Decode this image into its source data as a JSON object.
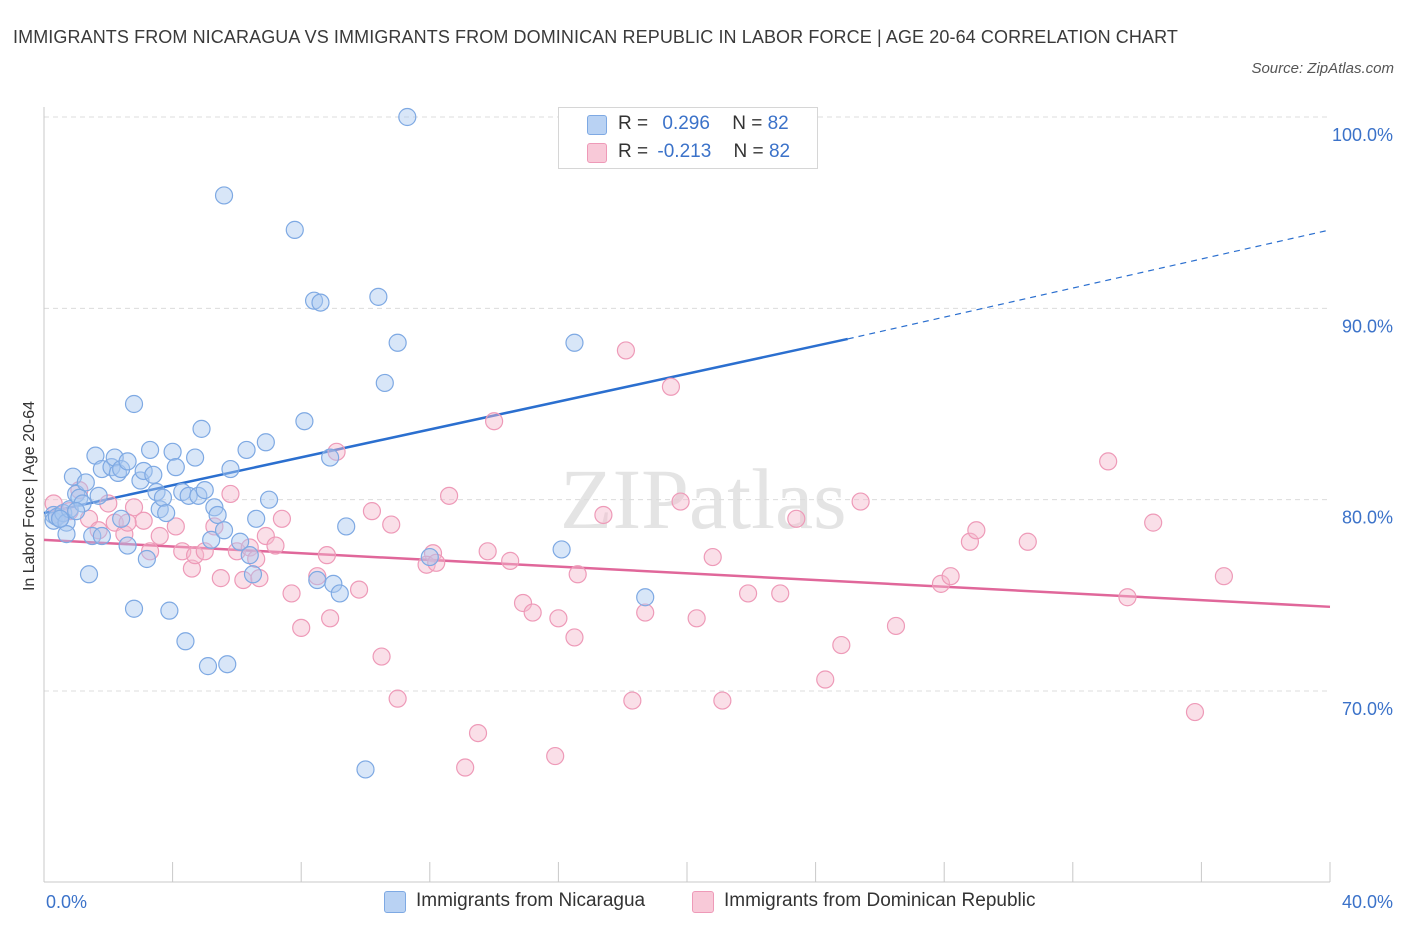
{
  "title": "IMMIGRANTS FROM NICARAGUA VS IMMIGRANTS FROM DOMINICAN REPUBLIC IN LABOR FORCE | AGE 20-64 CORRELATION CHART",
  "source": "Source: ZipAtlas.com",
  "watermark": "ZIPatlas",
  "legend": {
    "rows": [
      {
        "r_label": "R =",
        "r_value": "0.296",
        "n_label": "N =",
        "n_value": "82"
      },
      {
        "r_label": "R =",
        "r_value": "-0.213",
        "n_label": "N =",
        "n_value": "82"
      }
    ]
  },
  "bottom_legend": [
    "Immigrants from Nicaragua",
    "Immigrants from Dominican Republic"
  ],
  "chart_data": {
    "type": "scatter",
    "title": "IMMIGRANTS FROM NICARAGUA VS IMMIGRANTS FROM DOMINICAN REPUBLIC IN LABOR FORCE | AGE 20-64 CORRELATION CHART",
    "xlabel": "",
    "ylabel": "In Labor Force | Age 20-64",
    "xlim": [
      0,
      40
    ],
    "ylim": [
      60,
      100
    ],
    "x_tick_labels": [
      "0.0%",
      "40.0%"
    ],
    "y_ticks": [
      70,
      80,
      90,
      100
    ],
    "y_tick_labels": [
      "70.0%",
      "80.0%",
      "90.0%",
      "100.0%"
    ],
    "grid": true,
    "legend_position": "top-center",
    "colors": {
      "nicaragua": "#a8c8f0",
      "nicaragua_line": "#2b6fcf",
      "dominican": "#f5b8cb",
      "dominican_line": "#e0679a",
      "tick_text": "#3b72c9"
    },
    "series": [
      {
        "name": "Immigrants from Nicaragua",
        "points": [
          [
            0.3,
            79.2
          ],
          [
            0.3,
            78.9
          ],
          [
            0.4,
            79.1
          ],
          [
            0.5,
            79.0
          ],
          [
            0.6,
            79.3
          ],
          [
            0.7,
            78.8
          ],
          [
            0.7,
            78.2
          ],
          [
            0.8,
            79.5
          ],
          [
            0.9,
            81.2
          ],
          [
            1.0,
            80.3
          ],
          [
            1.1,
            80.1
          ],
          [
            1.2,
            79.8
          ],
          [
            1.3,
            80.9
          ],
          [
            1.4,
            76.1
          ],
          [
            1.5,
            78.1
          ],
          [
            1.6,
            82.3
          ],
          [
            1.7,
            80.2
          ],
          [
            1.8,
            81.6
          ],
          [
            1.8,
            78.1
          ],
          [
            2.1,
            81.7
          ],
          [
            2.2,
            82.2
          ],
          [
            2.3,
            81.4
          ],
          [
            2.4,
            81.6
          ],
          [
            2.4,
            79.0
          ],
          [
            2.6,
            77.6
          ],
          [
            2.6,
            82.0
          ],
          [
            2.8,
            85.0
          ],
          [
            2.8,
            74.3
          ],
          [
            3.0,
            81.0
          ],
          [
            3.1,
            81.5
          ],
          [
            3.2,
            76.9
          ],
          [
            3.3,
            82.6
          ],
          [
            3.4,
            81.3
          ],
          [
            3.5,
            80.4
          ],
          [
            3.6,
            79.5
          ],
          [
            3.7,
            80.1
          ],
          [
            3.8,
            79.3
          ],
          [
            3.9,
            74.2
          ],
          [
            4.0,
            82.5
          ],
          [
            4.1,
            81.7
          ],
          [
            4.3,
            80.4
          ],
          [
            4.4,
            72.6
          ],
          [
            4.5,
            80.2
          ],
          [
            4.7,
            82.2
          ],
          [
            4.8,
            80.2
          ],
          [
            4.9,
            83.7
          ],
          [
            5.0,
            80.5
          ],
          [
            5.1,
            71.3
          ],
          [
            5.2,
            77.9
          ],
          [
            5.3,
            79.6
          ],
          [
            5.4,
            79.2
          ],
          [
            5.6,
            78.4
          ],
          [
            5.7,
            71.4
          ],
          [
            5.8,
            81.6
          ],
          [
            6.1,
            77.8
          ],
          [
            6.3,
            82.6
          ],
          [
            6.4,
            77.1
          ],
          [
            6.5,
            76.1
          ],
          [
            6.6,
            79.0
          ],
          [
            6.9,
            83.0
          ],
          [
            7.0,
            80.0
          ],
          [
            7.8,
            94.1
          ],
          [
            8.1,
            84.1
          ],
          [
            8.4,
            90.4
          ],
          [
            8.5,
            75.8
          ],
          [
            8.6,
            90.3
          ],
          [
            8.9,
            82.2
          ],
          [
            9.0,
            75.6
          ],
          [
            9.2,
            75.1
          ],
          [
            9.4,
            78.6
          ],
          [
            10.0,
            65.9
          ],
          [
            10.4,
            90.6
          ],
          [
            10.6,
            86.1
          ],
          [
            11.0,
            88.2
          ],
          [
            11.3,
            100.0
          ],
          [
            12.0,
            77.0
          ],
          [
            16.1,
            77.4
          ],
          [
            16.5,
            88.2
          ],
          [
            18.7,
            74.9
          ],
          [
            5.6,
            95.9
          ],
          [
            1.0,
            79.4
          ],
          [
            0.5,
            79.0
          ]
        ]
      },
      {
        "name": "Immigrants from Dominican Republic",
        "points": [
          [
            0.3,
            79.8
          ],
          [
            0.5,
            79.2
          ],
          [
            0.8,
            79.4
          ],
          [
            1.1,
            80.5
          ],
          [
            1.4,
            79.0
          ],
          [
            1.7,
            78.4
          ],
          [
            2.0,
            79.8
          ],
          [
            2.2,
            78.8
          ],
          [
            2.5,
            78.2
          ],
          [
            2.8,
            79.6
          ],
          [
            3.1,
            78.9
          ],
          [
            3.3,
            77.3
          ],
          [
            4.1,
            78.6
          ],
          [
            4.3,
            77.3
          ],
          [
            4.6,
            76.4
          ],
          [
            4.7,
            77.1
          ],
          [
            5.0,
            77.3
          ],
          [
            5.3,
            78.6
          ],
          [
            5.5,
            75.9
          ],
          [
            5.8,
            80.3
          ],
          [
            6.0,
            77.3
          ],
          [
            6.2,
            75.8
          ],
          [
            6.4,
            77.5
          ],
          [
            6.6,
            76.9
          ],
          [
            6.9,
            78.1
          ],
          [
            7.2,
            77.6
          ],
          [
            7.4,
            79.0
          ],
          [
            7.7,
            75.1
          ],
          [
            8.0,
            73.3
          ],
          [
            8.5,
            76.0
          ],
          [
            8.8,
            77.1
          ],
          [
            8.9,
            73.8
          ],
          [
            9.1,
            82.5
          ],
          [
            9.8,
            75.3
          ],
          [
            10.2,
            79.4
          ],
          [
            10.5,
            71.8
          ],
          [
            10.8,
            78.7
          ],
          [
            11.0,
            69.6
          ],
          [
            12.1,
            77.2
          ],
          [
            11.9,
            76.6
          ],
          [
            12.2,
            76.7
          ],
          [
            12.6,
            80.2
          ],
          [
            13.1,
            66.0
          ],
          [
            13.5,
            67.8
          ],
          [
            13.8,
            77.3
          ],
          [
            14.0,
            84.1
          ],
          [
            14.5,
            76.8
          ],
          [
            14.9,
            74.6
          ],
          [
            15.2,
            74.1
          ],
          [
            15.9,
            66.6
          ],
          [
            16.0,
            73.8
          ],
          [
            16.5,
            72.8
          ],
          [
            16.6,
            76.1
          ],
          [
            17.4,
            79.2
          ],
          [
            18.1,
            87.8
          ],
          [
            18.3,
            69.5
          ],
          [
            18.7,
            74.1
          ],
          [
            19.5,
            85.9
          ],
          [
            19.8,
            79.9
          ],
          [
            20.3,
            73.8
          ],
          [
            20.8,
            77.0
          ],
          [
            21.1,
            69.5
          ],
          [
            21.9,
            75.1
          ],
          [
            22.9,
            75.1
          ],
          [
            23.4,
            79.0
          ],
          [
            24.3,
            70.6
          ],
          [
            24.8,
            72.4
          ],
          [
            25.4,
            79.9
          ],
          [
            26.5,
            73.4
          ],
          [
            27.9,
            75.6
          ],
          [
            28.2,
            76.0
          ],
          [
            28.8,
            77.8
          ],
          [
            29.0,
            78.4
          ],
          [
            30.6,
            77.8
          ],
          [
            33.1,
            82.0
          ],
          [
            33.7,
            74.9
          ],
          [
            34.5,
            78.8
          ],
          [
            35.8,
            68.9
          ],
          [
            36.7,
            76.0
          ],
          [
            6.7,
            75.9
          ],
          [
            2.6,
            78.8
          ],
          [
            3.6,
            78.1
          ]
        ]
      }
    ],
    "trend_lines": [
      {
        "series": "Immigrants from Nicaragua",
        "x": [
          0,
          25
        ],
        "y": [
          79.3,
          88.4
        ],
        "dashed_extension_to": [
          40,
          94.1
        ]
      },
      {
        "series": "Immigrants from Dominican Republic",
        "x": [
          0,
          40
        ],
        "y": [
          77.9,
          74.4
        ]
      }
    ]
  }
}
